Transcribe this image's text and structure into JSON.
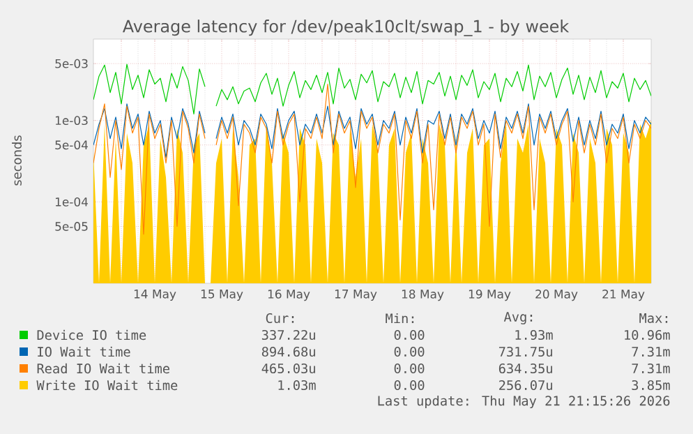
{
  "chart_data": {
    "type": "line",
    "title": "Average latency for /dev/peak10clt/swap_1 - by week",
    "ylabel": "seconds",
    "log": "y",
    "grid": true,
    "legend": "bottom",
    "xlim": [
      "2026-05-13T14:00",
      "2026-05-21T22:00"
    ],
    "ylim": [
      1e-05,
      0.01
    ],
    "yticks": [
      {
        "value": 5e-05,
        "label": "5e-05"
      },
      {
        "value": 0.0001,
        "label": "1e-04"
      },
      {
        "value": 0.0005,
        "label": "5e-04"
      },
      {
        "value": 0.001,
        "label": "1e-03"
      },
      {
        "value": 0.005,
        "label": "5e-03"
      }
    ],
    "xticks": [
      {
        "value": "2026-05-14T00:00",
        "label": null
      },
      {
        "value": "2026-05-14T12:00",
        "label": "14 May"
      },
      {
        "value": "2026-05-15T00:00",
        "label": null
      },
      {
        "value": "2026-05-15T12:00",
        "label": "15 May"
      },
      {
        "value": "2026-05-16T00:00",
        "label": null
      },
      {
        "value": "2026-05-16T12:00",
        "label": "16 May"
      },
      {
        "value": "2026-05-17T00:00",
        "label": null
      },
      {
        "value": "2026-05-17T12:00",
        "label": "17 May"
      },
      {
        "value": "2026-05-18T00:00",
        "label": null
      },
      {
        "value": "2026-05-18T12:00",
        "label": "18 May"
      },
      {
        "value": "2026-05-19T00:00",
        "label": null
      },
      {
        "value": "2026-05-19T12:00",
        "label": "19 May"
      },
      {
        "value": "2026-05-20T00:00",
        "label": null
      },
      {
        "value": "2026-05-20T12:00",
        "label": "20 May"
      },
      {
        "value": "2026-05-21T00:00",
        "label": null
      },
      {
        "value": "2026-05-21T12:00",
        "label": "21 May"
      }
    ],
    "x": [
      "2026-05-13T14:00",
      "2026-05-13T16:00",
      "2026-05-13T18:00",
      "2026-05-13T20:00",
      "2026-05-13T22:00",
      "2026-05-14T00:00",
      "2026-05-14T02:00",
      "2026-05-14T04:00",
      "2026-05-14T06:00",
      "2026-05-14T08:00",
      "2026-05-14T10:00",
      "2026-05-14T12:00",
      "2026-05-14T14:00",
      "2026-05-14T16:00",
      "2026-05-14T18:00",
      "2026-05-14T20:00",
      "2026-05-14T22:00",
      "2026-05-15T00:00",
      "2026-05-15T02:00",
      "2026-05-15T04:00",
      "2026-05-15T06:00",
      "2026-05-15T08:00",
      "2026-05-15T10:00",
      "2026-05-15T12:00",
      "2026-05-15T14:00",
      "2026-05-15T16:00",
      "2026-05-15T18:00",
      "2026-05-15T20:00",
      "2026-05-15T22:00",
      "2026-05-16T00:00",
      "2026-05-16T02:00",
      "2026-05-16T04:00",
      "2026-05-16T06:00",
      "2026-05-16T08:00",
      "2026-05-16T10:00",
      "2026-05-16T12:00",
      "2026-05-16T14:00",
      "2026-05-16T16:00",
      "2026-05-16T18:00",
      "2026-05-16T20:00",
      "2026-05-16T22:00",
      "2026-05-17T00:00",
      "2026-05-17T02:00",
      "2026-05-17T04:00",
      "2026-05-17T06:00",
      "2026-05-17T08:00",
      "2026-05-17T10:00",
      "2026-05-17T12:00",
      "2026-05-17T14:00",
      "2026-05-17T16:00",
      "2026-05-17T18:00",
      "2026-05-17T20:00",
      "2026-05-17T22:00",
      "2026-05-18T00:00",
      "2026-05-18T02:00",
      "2026-05-18T04:00",
      "2026-05-18T06:00",
      "2026-05-18T08:00",
      "2026-05-18T10:00",
      "2026-05-18T12:00",
      "2026-05-18T14:00",
      "2026-05-18T16:00",
      "2026-05-18T18:00",
      "2026-05-18T20:00",
      "2026-05-18T22:00",
      "2026-05-19T00:00",
      "2026-05-19T02:00",
      "2026-05-19T04:00",
      "2026-05-19T06:00",
      "2026-05-19T08:00",
      "2026-05-19T10:00",
      "2026-05-19T12:00",
      "2026-05-19T14:00",
      "2026-05-19T16:00",
      "2026-05-19T18:00",
      "2026-05-19T20:00",
      "2026-05-19T22:00",
      "2026-05-20T00:00",
      "2026-05-20T02:00",
      "2026-05-20T04:00",
      "2026-05-20T06:00",
      "2026-05-20T08:00",
      "2026-05-20T10:00",
      "2026-05-20T12:00",
      "2026-05-20T14:00",
      "2026-05-20T16:00",
      "2026-05-20T18:00",
      "2026-05-20T20:00",
      "2026-05-20T22:00",
      "2026-05-21T00:00",
      "2026-05-21T02:00",
      "2026-05-21T04:00",
      "2026-05-21T06:00",
      "2026-05-21T08:00",
      "2026-05-21T10:00",
      "2026-05-21T12:00",
      "2026-05-21T14:00",
      "2026-05-21T16:00",
      "2026-05-21T18:00",
      "2026-05-21T20:00",
      "2026-05-21T22:00"
    ],
    "series": [
      {
        "name": "Device IO time",
        "color": "#00cc00",
        "values": [
          0.0018,
          0.0035,
          0.0048,
          0.0022,
          0.0039,
          0.0016,
          0.0049,
          0.0024,
          0.0036,
          0.0019,
          0.0042,
          0.0028,
          0.0033,
          0.0017,
          0.0038,
          0.0025,
          0.0046,
          0.0031,
          0.0012,
          0.0043,
          0.0026,
          null,
          0.0015,
          0.0024,
          0.0018,
          0.0026,
          0.0016,
          0.0023,
          0.0025,
          0.0017,
          0.0029,
          0.0038,
          0.0021,
          0.0033,
          0.0015,
          0.0027,
          0.004,
          0.0019,
          0.0031,
          0.0024,
          0.0036,
          0.0022,
          0.0039,
          0.0016,
          0.0044,
          0.0025,
          0.0032,
          0.0018,
          0.0037,
          0.0029,
          0.0041,
          0.0017,
          0.003,
          0.0026,
          0.0038,
          0.0019,
          0.0034,
          0.0022,
          0.004,
          0.0016,
          0.0031,
          0.0028,
          0.0039,
          0.002,
          0.0035,
          0.0018,
          0.0036,
          0.0027,
          0.0042,
          0.0019,
          0.003,
          0.0024,
          0.0038,
          0.0017,
          0.0033,
          0.0026,
          0.004,
          0.0023,
          0.0048,
          0.0018,
          0.0035,
          0.0026,
          0.0039,
          0.0019,
          0.0032,
          0.0044,
          0.0021,
          0.0036,
          0.0018,
          0.0034,
          0.0022,
          0.0041,
          0.0019,
          0.003,
          0.0025,
          0.0038,
          0.0017,
          0.0033,
          0.0024,
          0.0031,
          0.002
        ]
      },
      {
        "name": "IO Wait time",
        "color": "#0066b3",
        "values": [
          0.0005,
          0.0009,
          0.0014,
          0.0006,
          0.0011,
          0.00045,
          0.0016,
          0.0008,
          0.0012,
          0.0005,
          0.0013,
          0.0007,
          0.001,
          0.00035,
          0.0011,
          0.0006,
          0.0014,
          0.0009,
          0.0004,
          0.0013,
          0.0007,
          null,
          0.0006,
          0.0011,
          0.0007,
          0.0012,
          0.0005,
          0.001,
          0.0008,
          0.0005,
          0.0012,
          0.0009,
          0.00045,
          0.0014,
          0.0006,
          0.001,
          0.0013,
          0.0005,
          0.0009,
          0.0007,
          0.0012,
          0.0007,
          0.0015,
          0.0005,
          0.0013,
          0.0008,
          0.0011,
          0.00045,
          0.0014,
          0.0009,
          0.0012,
          0.0005,
          0.001,
          0.0008,
          0.0013,
          0.0005,
          0.0011,
          0.0007,
          0.0014,
          0.0004,
          0.001,
          0.0009,
          0.0013,
          0.0006,
          0.0012,
          0.0005,
          0.0012,
          0.0009,
          0.0014,
          0.0006,
          0.001,
          0.0007,
          0.0013,
          0.00045,
          0.0011,
          0.0008,
          0.0013,
          0.0007,
          0.0016,
          0.0005,
          0.0012,
          0.0008,
          0.0013,
          0.0006,
          0.001,
          0.0014,
          0.00055,
          0.0011,
          0.0005,
          0.001,
          0.0006,
          0.0013,
          0.0005,
          0.0009,
          0.0007,
          0.0012,
          0.00045,
          0.001,
          0.0007,
          0.0011,
          0.0009
        ]
      },
      {
        "name": "Read IO Wait time",
        "color": "#ff8000",
        "values": [
          0.0003,
          0.0008,
          0.0016,
          0.0002,
          0.001,
          0.00025,
          0.0015,
          0.0007,
          0.0011,
          4e-05,
          0.0012,
          0.0006,
          0.0009,
          0.0003,
          0.001,
          5e-05,
          0.0013,
          0.0008,
          0.0003,
          0.0012,
          0.0006,
          null,
          0.0005,
          0.001,
          0.0006,
          0.0011,
          9e-05,
          0.0009,
          0.0007,
          0.0004,
          0.0011,
          0.0008,
          0.0003,
          0.0013,
          0.0005,
          0.0009,
          0.0012,
          0.0001,
          0.0008,
          0.0006,
          0.0011,
          0.0006,
          0.0028,
          0.0004,
          0.0012,
          0.0007,
          0.001,
          0.00015,
          0.0013,
          0.0008,
          0.0011,
          0.0004,
          0.0009,
          0.0007,
          0.0012,
          6e-05,
          0.001,
          0.0006,
          0.0013,
          0.0003,
          0.0009,
          8e-05,
          0.0012,
          0.0005,
          0.0011,
          0.0004,
          0.0011,
          0.0008,
          0.0013,
          0.0005,
          0.0009,
          5e-05,
          0.0012,
          0.00035,
          0.001,
          0.0007,
          0.0012,
          0.0006,
          0.0015,
          8e-05,
          0.0011,
          0.0007,
          0.0012,
          0.0005,
          0.0009,
          0.0013,
          0.0001,
          0.001,
          0.0004,
          0.0009,
          0.0005,
          0.0012,
          0.0003,
          0.0008,
          0.0006,
          0.0011,
          0.0003,
          0.0009,
          0.0006,
          0.001,
          0.0008
        ]
      },
      {
        "name": "Write IO Wait time",
        "color": "#ffcc00",
        "type": "area",
        "values": [
          0.0004,
          null,
          0.0009,
          null,
          0.0006,
          null,
          0.0007,
          0.0003,
          null,
          0.0005,
          0.0009,
          null,
          0.0006,
          0.0002,
          null,
          0.0008,
          0.0004,
          null,
          0.0005,
          0.0007,
          null,
          null,
          0.0003,
          0.0006,
          null,
          0.0008,
          0.0002,
          null,
          0.0005,
          0.0006,
          null,
          0.0009,
          0.0003,
          null,
          0.0007,
          0.0004,
          null,
          0.0008,
          0.0005,
          null,
          0.0006,
          0.0003,
          null,
          0.0007,
          0.0005,
          null,
          0.0008,
          0.0002,
          0.0006,
          null,
          0.0009,
          0.0004,
          null,
          0.0005,
          0.0008,
          null,
          0.0004,
          0.0007,
          null,
          0.0006,
          0.0003,
          null,
          0.0009,
          0.0005,
          null,
          0.0007,
          null,
          0.0004,
          0.0008,
          null,
          0.0005,
          0.0006,
          null,
          0.0003,
          0.0009,
          null,
          0.0006,
          0.0004,
          0.0009,
          null,
          0.0006,
          0.0003,
          null,
          0.0008,
          0.0005,
          null,
          0.0007,
          0.0004,
          null,
          0.0006,
          0.0003,
          null,
          0.0008,
          0.0005,
          null,
          0.0007,
          0.0004,
          null,
          0.0009,
          0.0006,
          0.001
        ]
      }
    ],
    "annotations": [
      "Cur:",
      "Min:",
      "Avg:",
      "Max:",
      "337.22u",
      "0.00",
      "1.93m",
      "10.96m",
      "894.68u",
      "0.00",
      "731.75u",
      "7.31m",
      "465.03u",
      "0.00",
      "634.35u",
      "7.31m",
      "1.03m",
      "0.00",
      "256.07u",
      "3.85m",
      "Last update: Thu May 21 21:15:26 2026"
    ]
  }
}
